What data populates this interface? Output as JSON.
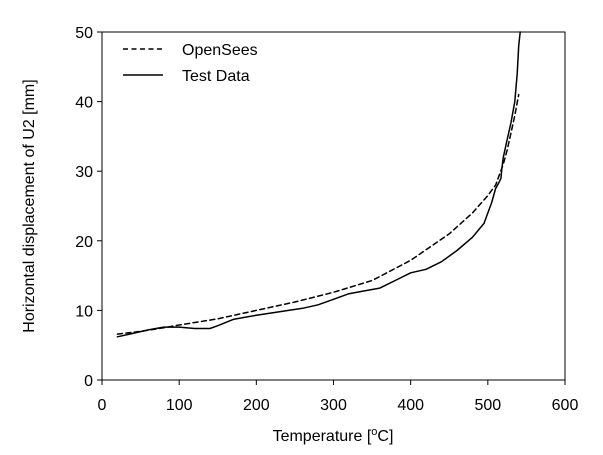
{
  "chart_data": {
    "type": "line",
    "xlabel_main": "Temperature [",
    "xlabel_sup": "o",
    "xlabel_end": "C]",
    "ylabel": "Horizontal displacement of U2 [mm]",
    "xlim": [
      0,
      600
    ],
    "ylim": [
      0,
      50
    ],
    "x_ticks": [
      "0",
      "100",
      "200",
      "300",
      "400",
      "500",
      "600"
    ],
    "y_ticks": [
      "0",
      "10",
      "20",
      "30",
      "40",
      "50"
    ],
    "legend_position": "top-left",
    "grid": false,
    "series": [
      {
        "name": "OpenSees",
        "style": "dashed",
        "color": "#000000",
        "points": [
          [
            20,
            6.6
          ],
          [
            50,
            7.0
          ],
          [
            80,
            7.5
          ],
          [
            100,
            7.9
          ],
          [
            150,
            8.8
          ],
          [
            200,
            10.0
          ],
          [
            250,
            11.2
          ],
          [
            300,
            12.6
          ],
          [
            350,
            14.3
          ],
          [
            400,
            17.2
          ],
          [
            450,
            21.0
          ],
          [
            480,
            24.0
          ],
          [
            500,
            26.5
          ],
          [
            510,
            28.0
          ],
          [
            515,
            29.5
          ],
          [
            520,
            31.0
          ],
          [
            525,
            33.0
          ],
          [
            530,
            35.5
          ],
          [
            535,
            38.0
          ],
          [
            540,
            41.0
          ]
        ]
      },
      {
        "name": "Test Data",
        "style": "solid",
        "color": "#000000",
        "points": [
          [
            20,
            6.2
          ],
          [
            40,
            6.7
          ],
          [
            60,
            7.2
          ],
          [
            80,
            7.6
          ],
          [
            100,
            7.6
          ],
          [
            120,
            7.4
          ],
          [
            140,
            7.4
          ],
          [
            150,
            7.8
          ],
          [
            170,
            8.7
          ],
          [
            200,
            9.3
          ],
          [
            230,
            9.8
          ],
          [
            260,
            10.3
          ],
          [
            280,
            10.8
          ],
          [
            300,
            11.6
          ],
          [
            320,
            12.4
          ],
          [
            340,
            12.8
          ],
          [
            360,
            13.2
          ],
          [
            380,
            14.3
          ],
          [
            400,
            15.4
          ],
          [
            420,
            15.9
          ],
          [
            440,
            17.0
          ],
          [
            460,
            18.6
          ],
          [
            480,
            20.5
          ],
          [
            495,
            22.5
          ],
          [
            505,
            25.5
          ],
          [
            510,
            27.5
          ],
          [
            515,
            28.5
          ],
          [
            517,
            29.0
          ],
          [
            518,
            30.2
          ],
          [
            520,
            32.0
          ],
          [
            525,
            34.5
          ],
          [
            530,
            37.0
          ],
          [
            535,
            40.0
          ],
          [
            538,
            44.0
          ],
          [
            540,
            48.0
          ],
          [
            542,
            50.0
          ]
        ]
      }
    ]
  }
}
